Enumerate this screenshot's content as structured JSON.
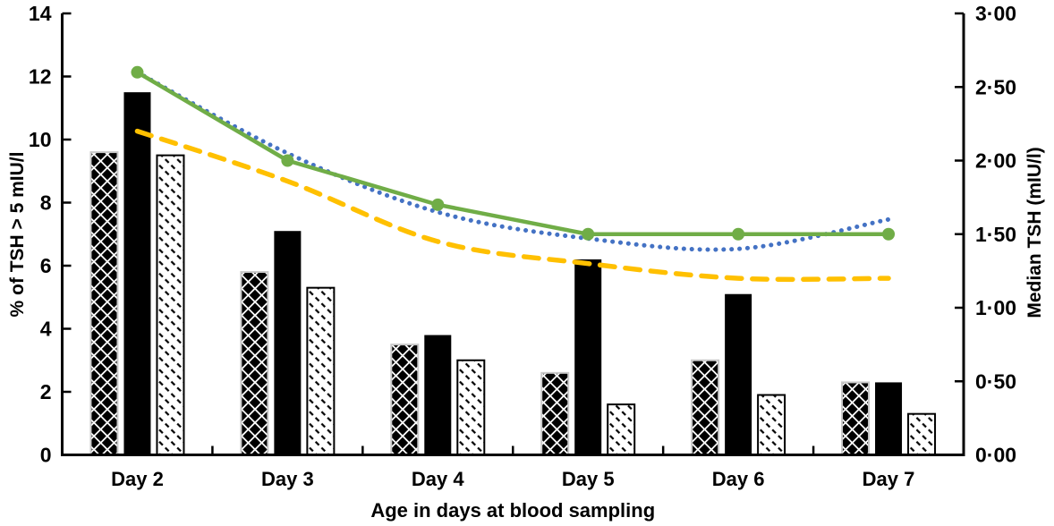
{
  "chart_data": {
    "type": "bar",
    "subtype": "combo-bar-line-dual-axis",
    "categories": [
      "Day 2",
      "Day 3",
      "Day 4",
      "Day 5",
      "Day 6",
      "Day 7"
    ],
    "xlabel": "Age in days at blood sampling",
    "left_axis": {
      "label": "% of TSH > 5 mIU/l",
      "min": 0,
      "max": 14,
      "tick_values": [
        0,
        2,
        4,
        6,
        8,
        10,
        12,
        14
      ],
      "tick_labels": [
        "0",
        "2",
        "4",
        "6",
        "8",
        "10",
        "12",
        "14"
      ]
    },
    "right_axis": {
      "label": "Median TSH (mIU/l)",
      "min": 0,
      "max": 3,
      "tick_values": [
        0,
        0.5,
        1,
        1.5,
        2,
        2.5,
        3
      ],
      "tick_labels": [
        "0·00",
        "0·50",
        "1·00",
        "1·50",
        "2·00",
        "2·50",
        "3·00"
      ]
    },
    "series": [
      {
        "name": "pct-tsh-gt5-diamond-pattern-bar",
        "kind": "bar",
        "axis": "left",
        "fill": "diamond-checker",
        "values": [
          9.6,
          5.8,
          3.5,
          2.6,
          3.0,
          2.3
        ]
      },
      {
        "name": "pct-tsh-gt5-solid-black-bar",
        "kind": "bar",
        "axis": "left",
        "fill": "solid-black",
        "values": [
          11.5,
          7.1,
          3.8,
          6.2,
          5.1,
          2.3
        ]
      },
      {
        "name": "pct-tsh-gt5-diagonal-hatch-bar",
        "kind": "bar",
        "axis": "left",
        "fill": "diagonal-hatch",
        "values": [
          9.5,
          5.3,
          3.0,
          1.6,
          1.9,
          1.3
        ]
      },
      {
        "name": "median-tsh-blue-dotted-line",
        "kind": "line",
        "axis": "right",
        "style": "dotted",
        "color": "#4472C4",
        "values": [
          2.6,
          2.05,
          1.65,
          1.47,
          1.4,
          1.6
        ]
      },
      {
        "name": "median-tsh-yellow-dashed-line",
        "kind": "line",
        "axis": "right",
        "style": "dashed",
        "color": "#FFC000",
        "values": [
          2.2,
          1.86,
          1.45,
          1.3,
          1.2,
          1.2
        ]
      },
      {
        "name": "median-tsh-green-solid-line",
        "kind": "line",
        "axis": "right",
        "style": "solid-markers",
        "color": "#70AD47",
        "values": [
          2.6,
          2.0,
          1.7,
          1.5,
          1.5,
          1.5
        ]
      }
    ],
    "legend": "none",
    "grid": "off",
    "colors": {
      "axis": "#000000",
      "bar_black": "#000000",
      "pattern_ink": "#000000",
      "pattern_bar_border": "#c9c9c9",
      "hatch_bar_border": "#000000",
      "line_green": "#70AD47",
      "line_blue": "#4472C4",
      "line_yellow": "#FFC000",
      "background": "#ffffff"
    }
  }
}
